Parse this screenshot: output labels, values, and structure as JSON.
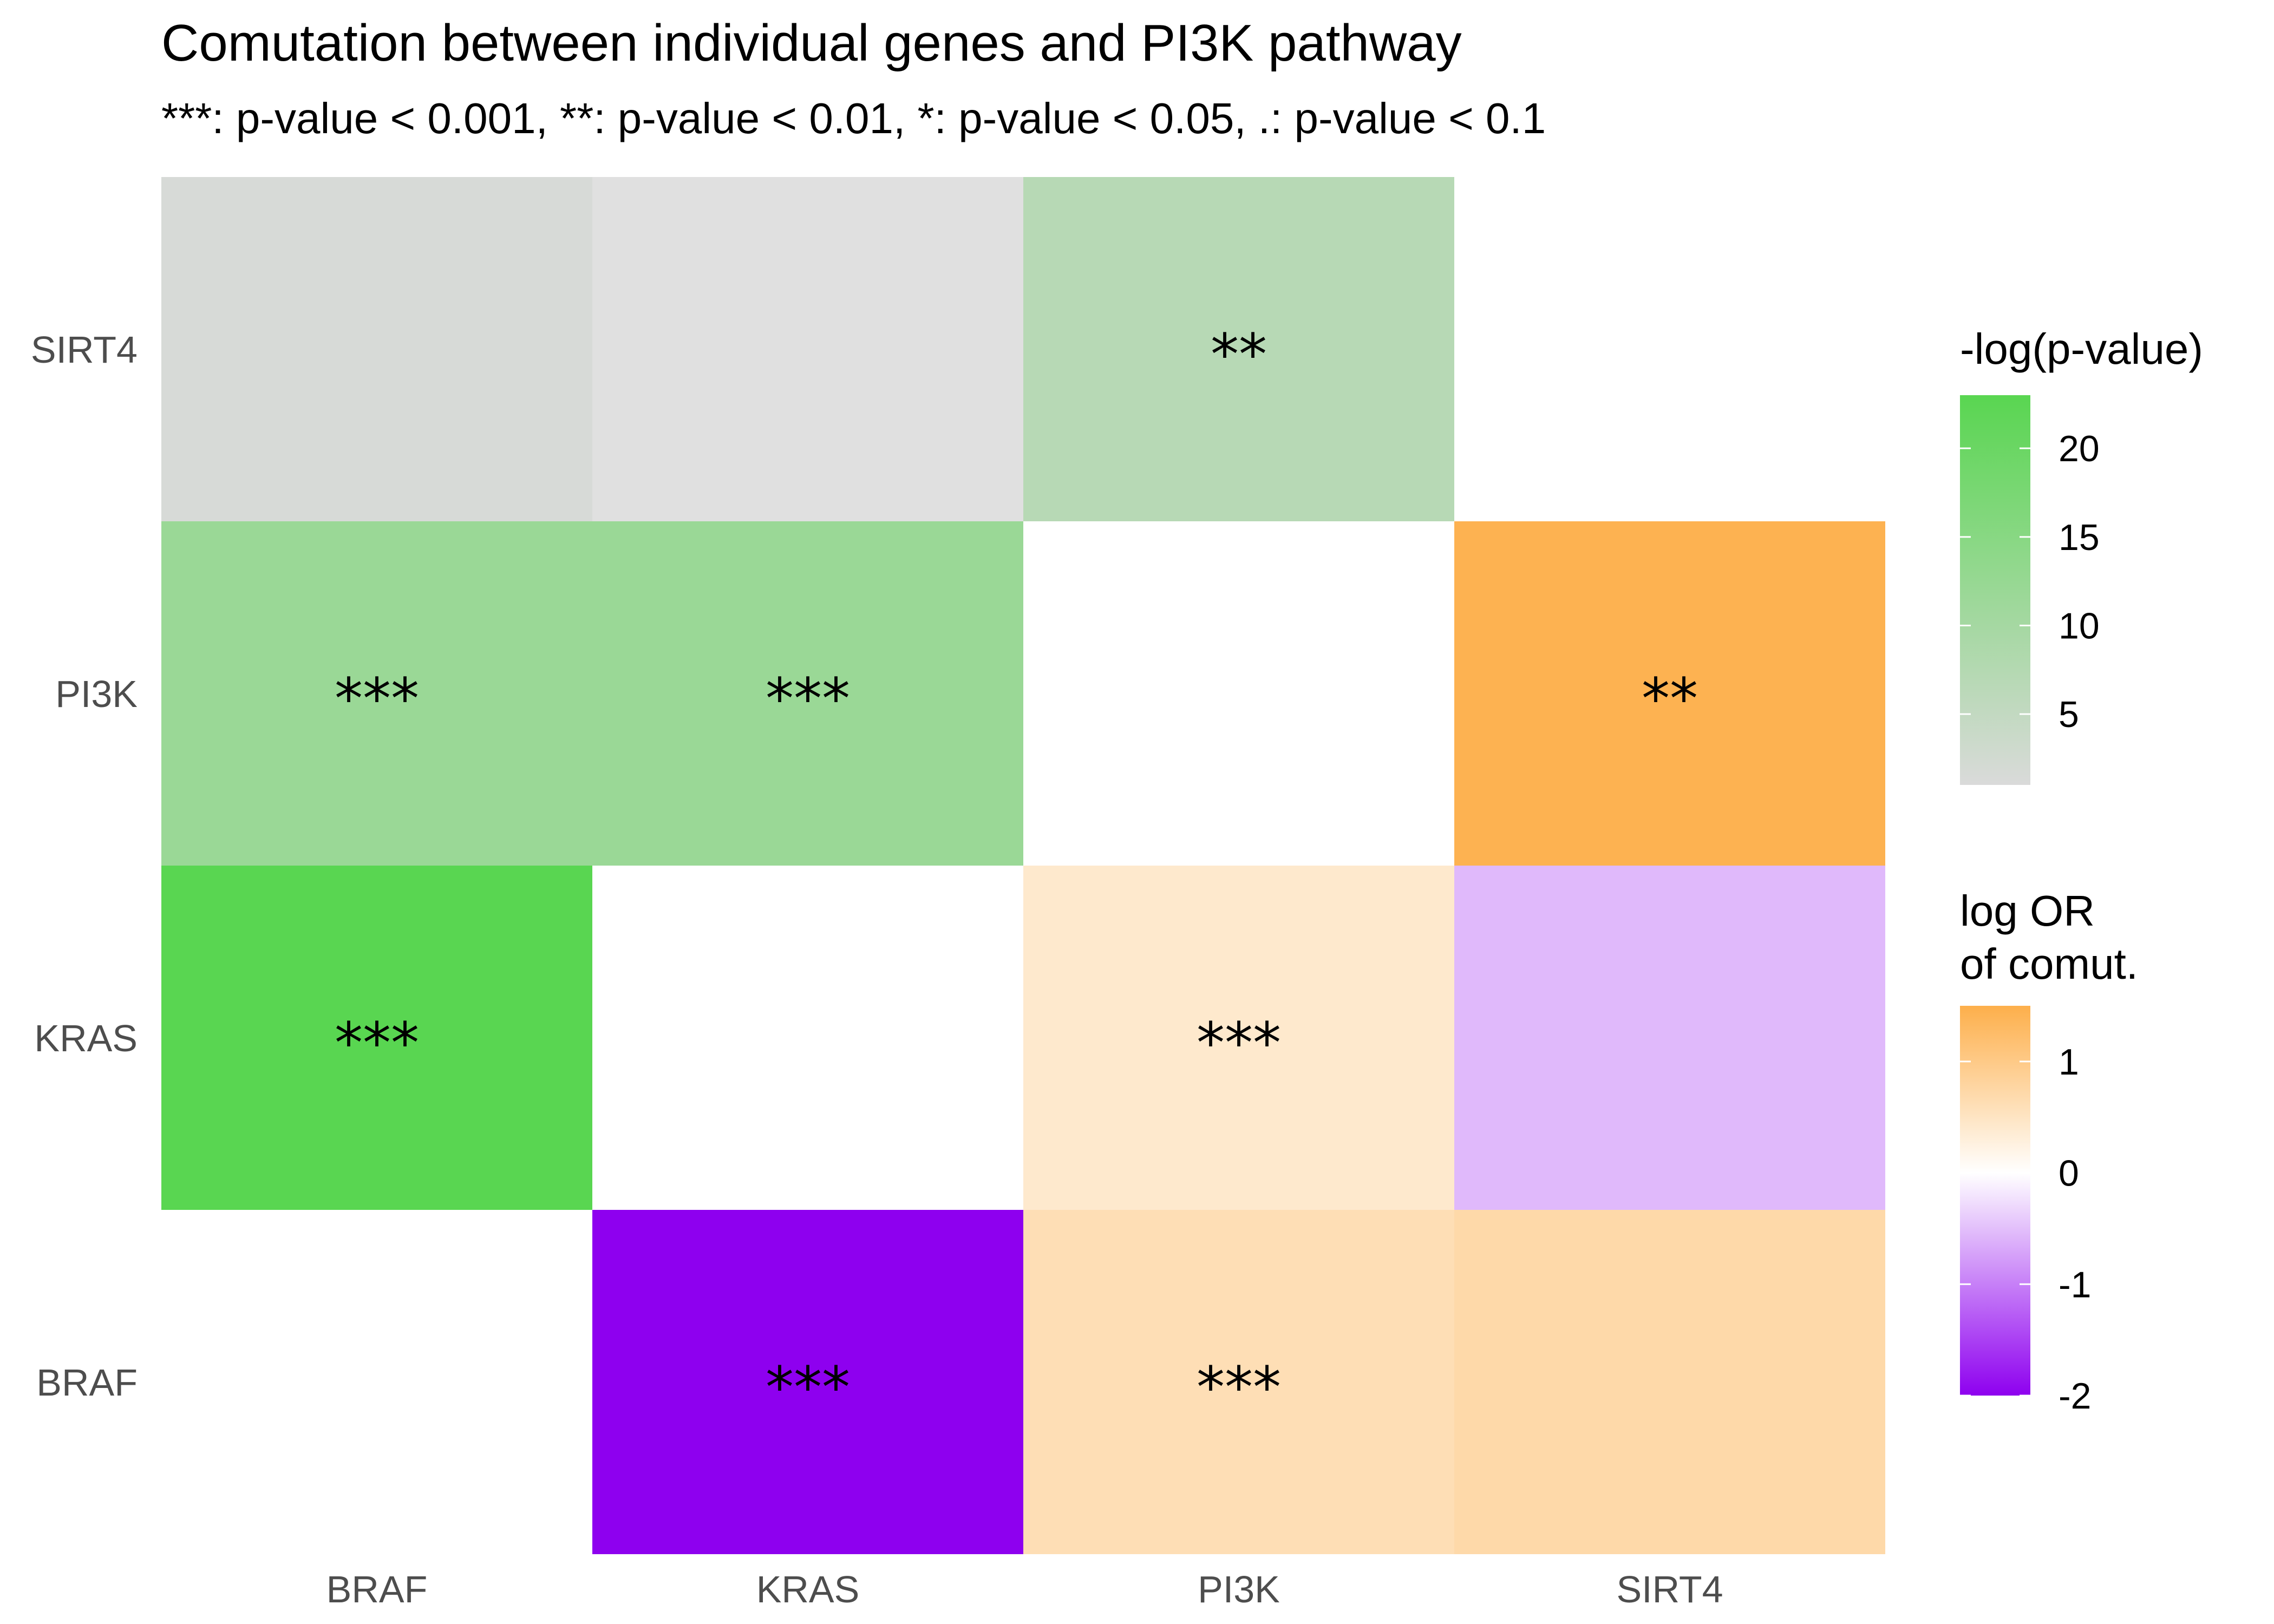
{
  "chart_data": {
    "type": "heatmap",
    "title": "Comutation between individual genes and PI3K pathway",
    "subtitle": "***: p-value < 0.001, **: p-value < 0.01, *: p-value < 0.05, .: p-value < 0.1",
    "x_categories": [
      "BRAF",
      "KRAS",
      "PI3K",
      "SIRT4"
    ],
    "y_categories": [
      "BRAF",
      "KRAS",
      "PI3K",
      "SIRT4"
    ],
    "upper_triangle_measure": "log OR of comut.",
    "lower_triangle_measure": "-log(p-value)",
    "cells": [
      {
        "x": "KRAS",
        "y": "BRAF",
        "metric": "log_or",
        "value": -2.0,
        "label": "***"
      },
      {
        "x": "PI3K",
        "y": "BRAF",
        "metric": "log_or",
        "value": 0.62,
        "label": "***"
      },
      {
        "x": "SIRT4",
        "y": "BRAF",
        "metric": "log_or",
        "value": 0.72,
        "label": ""
      },
      {
        "x": "PI3K",
        "y": "KRAS",
        "metric": "log_or",
        "value": 0.42,
        "label": "***"
      },
      {
        "x": "SIRT4",
        "y": "KRAS",
        "metric": "log_or",
        "value": -0.55,
        "label": ""
      },
      {
        "x": "SIRT4",
        "y": "PI3K",
        "metric": "log_or",
        "value": 1.45,
        "label": "**"
      },
      {
        "x": "BRAF",
        "y": "KRAS",
        "metric": "neglog_p",
        "value": 23.0,
        "label": "***"
      },
      {
        "x": "BRAF",
        "y": "PI3K",
        "metric": "neglog_p",
        "value": 12.0,
        "label": "***"
      },
      {
        "x": "KRAS",
        "y": "PI3K",
        "metric": "neglog_p",
        "value": 12.0,
        "label": "***"
      },
      {
        "x": "BRAF",
        "y": "SIRT4",
        "metric": "neglog_p",
        "value": 1.5,
        "label": ""
      },
      {
        "x": "KRAS",
        "y": "SIRT4",
        "metric": "neglog_p",
        "value": 0.5,
        "label": ""
      },
      {
        "x": "PI3K",
        "y": "SIRT4",
        "metric": "neglog_p",
        "value": 7.0,
        "label": "**"
      }
    ],
    "legends": [
      {
        "title": [
          "-log(p-value)"
        ],
        "range": [
          1,
          23
        ],
        "ticks": [
          5,
          10,
          15,
          20
        ],
        "colors": {
          "low": "#dadada",
          "high": "#59d651"
        }
      },
      {
        "title": [
          "log OR",
          "of comut."
        ],
        "range": [
          -2,
          1.5
        ],
        "ticks": [
          -2,
          -1,
          0,
          1
        ],
        "colors": {
          "low": "#8e00ef",
          "mid": "#ffffff",
          "high": "#fdaf4b"
        }
      }
    ],
    "grey_color": "#e0e0e0"
  }
}
